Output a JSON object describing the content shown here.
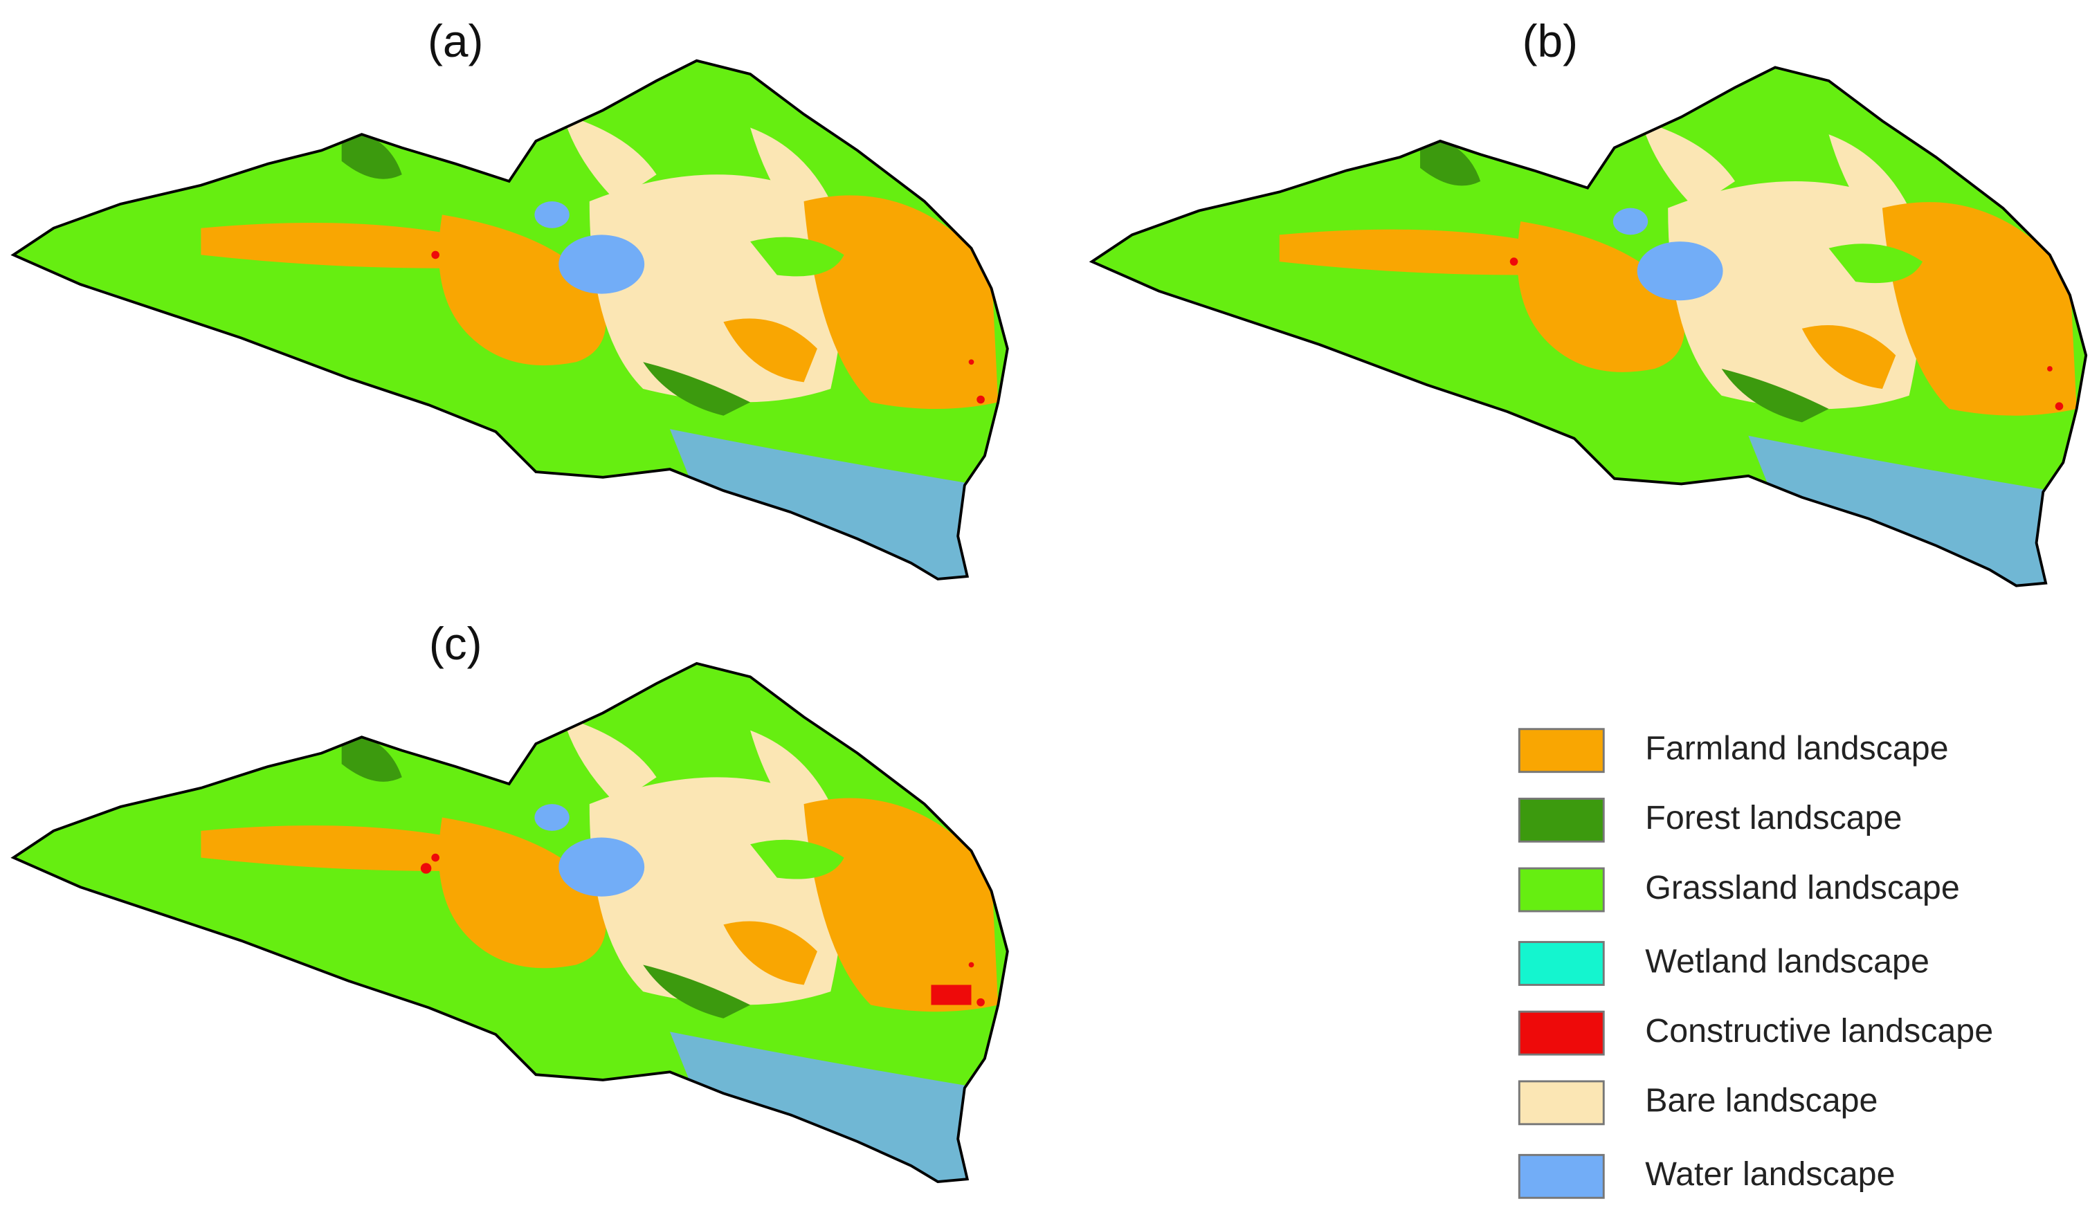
{
  "panels": [
    {
      "label": "(a)"
    },
    {
      "label": "(b)"
    },
    {
      "label": "(c)"
    }
  ],
  "legend": [
    {
      "label": "Farmland landscape",
      "color": "#f9a602"
    },
    {
      "label": "Forest landscape",
      "color": "#3c9a0e"
    },
    {
      "label": "Grassland landscape",
      "color": "#66ee11"
    },
    {
      "label": "Wetland landscape",
      "color": "#14f5cf"
    },
    {
      "label": "Constructive landscape",
      "color": "#ee0a0a"
    },
    {
      "label": "Bare landscape",
      "color": "#fbe6b4"
    },
    {
      "label": "Water landscape",
      "color": "#72adf7"
    }
  ]
}
